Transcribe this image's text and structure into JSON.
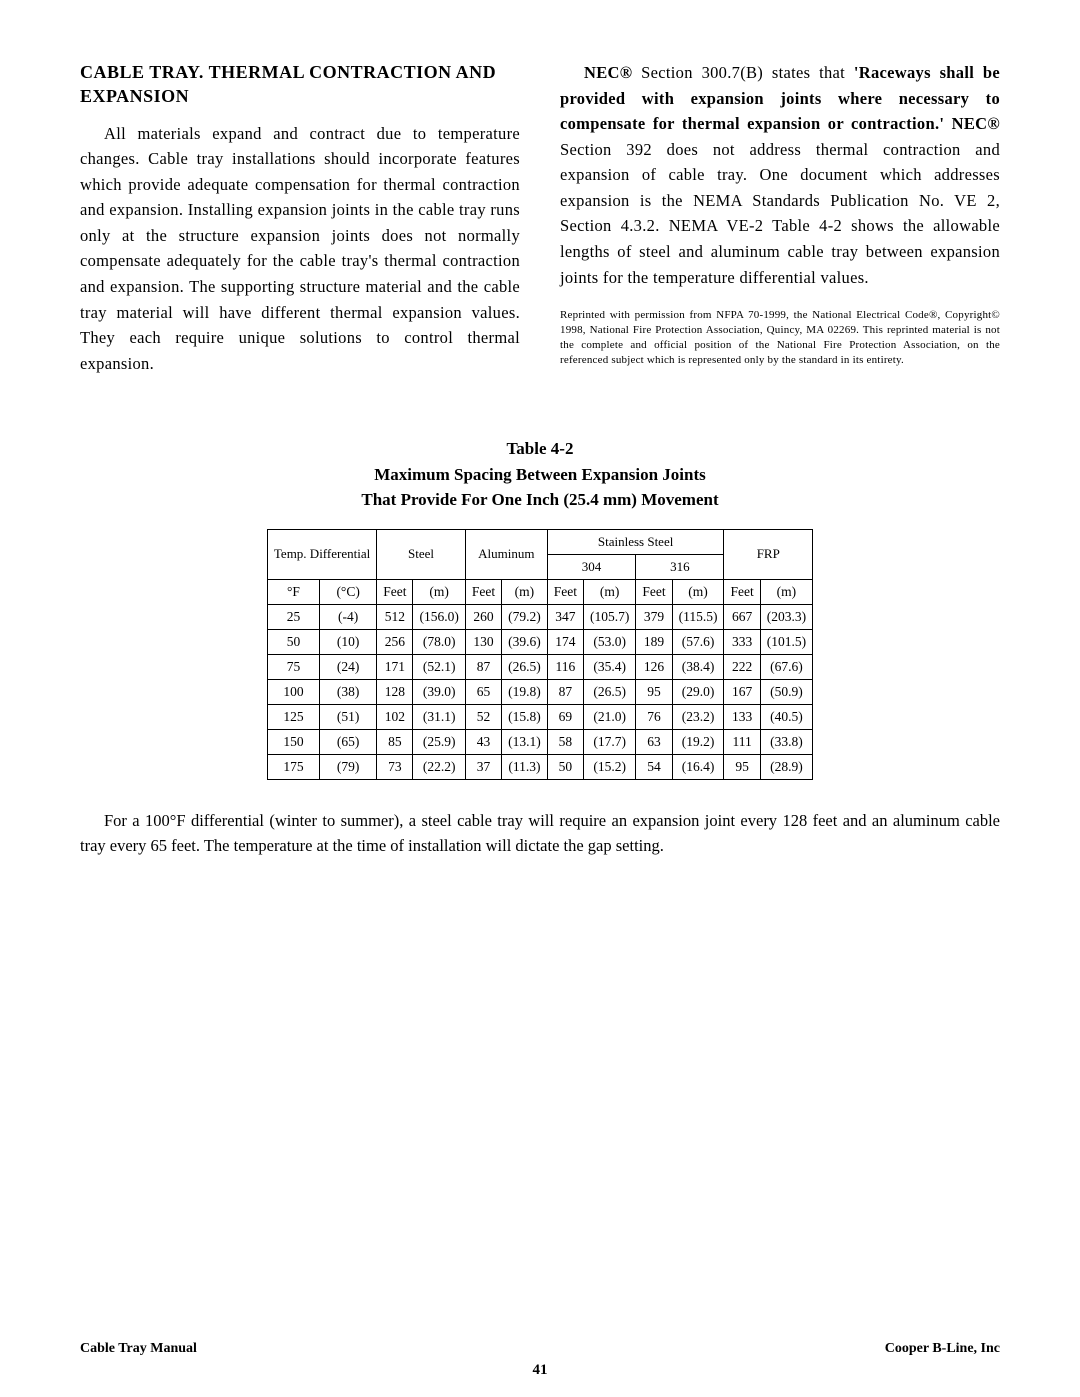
{
  "heading": "CABLE TRAY. THERMAL CONTRACTION AND EXPANSION",
  "left_para": "All materials expand and contract due to temperature changes. Cable tray installations should incorporate features which provide adequate compensation for thermal contraction and expansion. Installing expansion joints in the cable tray runs only at the structure expansion joints does not normally compensate adequately for the cable tray's thermal contraction and expansion. The supporting structure material and the cable tray material will have different thermal expansion values. They each require unique solutions to control thermal expansion.",
  "right_para_pre": "NEC",
  "right_para_reg1": "®",
  "right_para_sec": " Section 300.7(B) states that ",
  "right_para_bold": "'Raceways shall be provided with expansion joints where necessary to compensate for thermal expansion or contraction.'  NEC",
  "right_para_reg2": "®",
  "right_para_rest": " Section 392 does not address thermal contraction and expansion of cable tray. One document which addresses expansion is the NEMA Standards Publication No. VE 2, Section 4.3.2. NEMA VE-2 Table 4-2 shows the allowable lengths of steel and aluminum cable tray between expansion joints for the temperature differential values.",
  "fine_print": "Reprinted with permission from NFPA 70-1999, the National Electrical Code®, Copyright© 1998, National Fire Protection Association, Quincy, MA 02269. This reprinted material is not the complete and official position of the National Fire Protection Association, on the referenced subject which is represented only by the standard in its entirety.",
  "table_caption_l1": "Table 4-2",
  "table_caption_l2": "Maximum Spacing Between Expansion Joints",
  "table_caption_l3": "That Provide For One Inch (25.4 mm) Movement",
  "group_headers": {
    "temp": "Temp. Differential",
    "steel": "Steel",
    "aluminum": "Aluminum",
    "ss": "Stainless Steel",
    "ss304": "304",
    "ss316": "316",
    "frp": "FRP"
  },
  "unit_headers": [
    "°F",
    "(°C)",
    "Feet",
    "(m)",
    "Feet",
    "(m)",
    "Feet",
    "(m)",
    "Feet",
    "(m)",
    "Feet",
    "(m)"
  ],
  "rows": [
    [
      "25",
      "(-4)",
      "512",
      "(156.0)",
      "260",
      "(79.2)",
      "347",
      "(105.7)",
      "379",
      "(115.5)",
      "667",
      "(203.3)"
    ],
    [
      "50",
      "(10)",
      "256",
      "(78.0)",
      "130",
      "(39.6)",
      "174",
      "(53.0)",
      "189",
      "(57.6)",
      "333",
      "(101.5)"
    ],
    [
      "75",
      "(24)",
      "171",
      "(52.1)",
      "87",
      "(26.5)",
      "116",
      "(35.4)",
      "126",
      "(38.4)",
      "222",
      "(67.6)"
    ],
    [
      "100",
      "(38)",
      "128",
      "(39.0)",
      "65",
      "(19.8)",
      "87",
      "(26.5)",
      "95",
      "(29.0)",
      "167",
      "(50.9)"
    ],
    [
      "125",
      "(51)",
      "102",
      "(31.1)",
      "52",
      "(15.8)",
      "69",
      "(21.0)",
      "76",
      "(23.2)",
      "133",
      "(40.5)"
    ],
    [
      "150",
      "(65)",
      "85",
      "(25.9)",
      "43",
      "(13.1)",
      "58",
      "(17.7)",
      "63",
      "(19.2)",
      "111",
      "(33.8)"
    ],
    [
      "175",
      "(79)",
      "73",
      "(22.2)",
      "37",
      "(11.3)",
      "50",
      "(15.2)",
      "54",
      "(16.4)",
      "95",
      "(28.9)"
    ]
  ],
  "below_table": "For a 100°F differential (winter to summer), a steel cable tray will require an expansion joint every 128 feet and an aluminum cable tray every 65 feet. The temperature at the time of installation will dictate the gap setting.",
  "footer_left": "Cable Tray Manual",
  "footer_right": "Cooper B-Line, Inc",
  "page_number": "41",
  "colors": {
    "text": "#000000",
    "background": "#ffffff",
    "table_border": "#000000"
  },
  "typography": {
    "title_size_pt": 14,
    "body_size_pt": 12,
    "fine_size_pt": 8,
    "table_size_pt": 10,
    "font_family": "serif"
  }
}
